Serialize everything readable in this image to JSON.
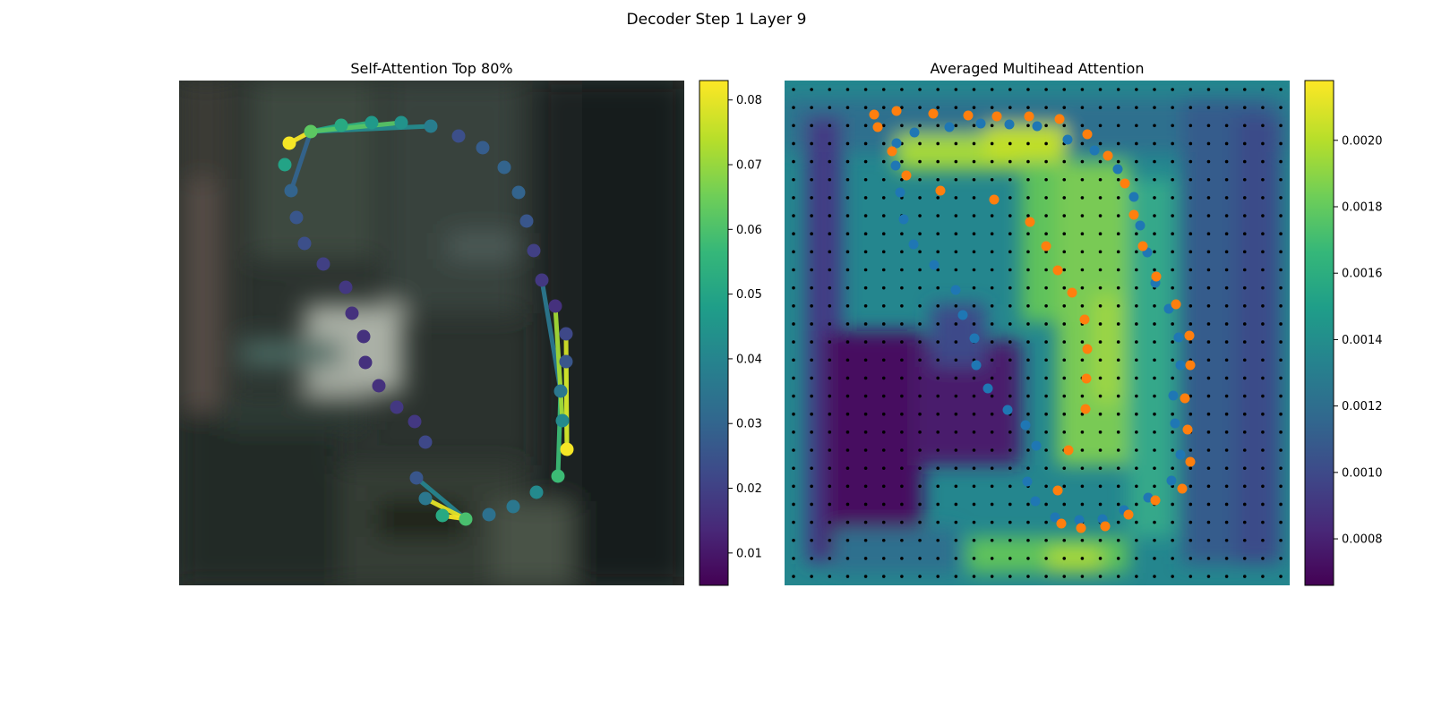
{
  "figure": {
    "suptitle": "Decoder Step 1 Layer 9"
  },
  "colors": {
    "viridis": [
      "#440154",
      "#482878",
      "#3e4989",
      "#31688e",
      "#26828e",
      "#1f9e89",
      "#35b779",
      "#6ece58",
      "#b5de2b",
      "#fde725"
    ],
    "series_blue": "#1f77b4",
    "series_orange": "#ff7f0e",
    "grid_dot": "#000000"
  },
  "chart_data": [
    {
      "panel": "left",
      "type": "scatter",
      "title": "Self-Attention Top 80%",
      "background": "blurred photo",
      "colorbar": {
        "ticks": [
          "0.01",
          "0.02",
          "0.03",
          "0.04",
          "0.05",
          "0.06",
          "0.07",
          "0.08"
        ],
        "range": [
          0.005,
          0.083
        ]
      },
      "points": [
        {
          "x": 323,
          "y": 160,
          "v": 0.082
        },
        {
          "x": 347,
          "y": 147,
          "v": 0.063
        },
        {
          "x": 381,
          "y": 140,
          "v": 0.052
        },
        {
          "x": 415,
          "y": 137,
          "v": 0.047
        },
        {
          "x": 448,
          "y": 137,
          "v": 0.045
        },
        {
          "x": 481,
          "y": 141,
          "v": 0.038
        },
        {
          "x": 512,
          "y": 152,
          "v": 0.024
        },
        {
          "x": 539,
          "y": 165,
          "v": 0.028
        },
        {
          "x": 563,
          "y": 187,
          "v": 0.03
        },
        {
          "x": 579,
          "y": 215,
          "v": 0.03
        },
        {
          "x": 588,
          "y": 247,
          "v": 0.026
        },
        {
          "x": 596,
          "y": 280,
          "v": 0.02
        },
        {
          "x": 605,
          "y": 313,
          "v": 0.018
        },
        {
          "x": 620,
          "y": 342,
          "v": 0.016
        },
        {
          "x": 632,
          "y": 373,
          "v": 0.022
        },
        {
          "x": 632,
          "y": 404,
          "v": 0.026
        },
        {
          "x": 626,
          "y": 437,
          "v": 0.036
        },
        {
          "x": 628,
          "y": 470,
          "v": 0.042
        },
        {
          "x": 633,
          "y": 502,
          "v": 0.082
        },
        {
          "x": 623,
          "y": 532,
          "v": 0.058
        },
        {
          "x": 599,
          "y": 550,
          "v": 0.042
        },
        {
          "x": 573,
          "y": 566,
          "v": 0.036
        },
        {
          "x": 546,
          "y": 575,
          "v": 0.034
        },
        {
          "x": 520,
          "y": 580,
          "v": 0.06
        },
        {
          "x": 494,
          "y": 576,
          "v": 0.052
        },
        {
          "x": 475,
          "y": 557,
          "v": 0.036
        },
        {
          "x": 465,
          "y": 534,
          "v": 0.026
        },
        {
          "x": 475,
          "y": 494,
          "v": 0.022
        },
        {
          "x": 463,
          "y": 471,
          "v": 0.018
        },
        {
          "x": 443,
          "y": 455,
          "v": 0.018
        },
        {
          "x": 423,
          "y": 431,
          "v": 0.016
        },
        {
          "x": 408,
          "y": 405,
          "v": 0.016
        },
        {
          "x": 406,
          "y": 376,
          "v": 0.016
        },
        {
          "x": 393,
          "y": 350,
          "v": 0.016
        },
        {
          "x": 386,
          "y": 321,
          "v": 0.018
        },
        {
          "x": 361,
          "y": 295,
          "v": 0.02
        },
        {
          "x": 340,
          "y": 272,
          "v": 0.024
        },
        {
          "x": 331,
          "y": 243,
          "v": 0.026
        },
        {
          "x": 325,
          "y": 213,
          "v": 0.03
        },
        {
          "x": 318,
          "y": 184,
          "v": 0.05
        }
      ],
      "links": [
        {
          "from": [
            323,
            160
          ],
          "to": [
            347,
            147
          ],
          "v": 0.082
        },
        {
          "from": [
            347,
            147
          ],
          "to": [
            448,
            137
          ],
          "v": 0.062
        },
        {
          "from": [
            347,
            147
          ],
          "to": [
            415,
            137
          ],
          "v": 0.055
        },
        {
          "from": [
            347,
            147
          ],
          "to": [
            381,
            140
          ],
          "v": 0.05
        },
        {
          "from": [
            347,
            147
          ],
          "to": [
            481,
            141
          ],
          "v": 0.042
        },
        {
          "from": [
            347,
            147
          ],
          "to": [
            325,
            213
          ],
          "v": 0.03
        },
        {
          "from": [
            632,
            373
          ],
          "to": [
            633,
            502
          ],
          "v": 0.078
        },
        {
          "from": [
            620,
            342
          ],
          "to": [
            628,
            470
          ],
          "v": 0.072
        },
        {
          "from": [
            632,
            404
          ],
          "to": [
            633,
            502
          ],
          "v": 0.066
        },
        {
          "from": [
            626,
            437
          ],
          "to": [
            623,
            532
          ],
          "v": 0.058
        },
        {
          "from": [
            605,
            313
          ],
          "to": [
            626,
            437
          ],
          "v": 0.036
        },
        {
          "from": [
            494,
            576
          ],
          "to": [
            520,
            580
          ],
          "v": 0.082
        },
        {
          "from": [
            475,
            557
          ],
          "to": [
            520,
            580
          ],
          "v": 0.08
        },
        {
          "from": [
            465,
            534
          ],
          "to": [
            520,
            580
          ],
          "v": 0.04
        }
      ]
    },
    {
      "panel": "right",
      "type": "heatmap",
      "title": "Averaged Multihead Attention",
      "colorbar": {
        "ticks": [
          "0.0008",
          "0.0010",
          "0.0012",
          "0.0014",
          "0.0016",
          "0.0018",
          "0.0020"
        ],
        "range": [
          0.00066,
          0.00218
        ]
      },
      "blue_points": [
        [
          1001,
          160
        ],
        [
          1000,
          185
        ],
        [
          1021,
          148
        ],
        [
          1060,
          142
        ],
        [
          1095,
          138
        ],
        [
          1127,
          139
        ],
        [
          1158,
          141
        ],
        [
          1192,
          156
        ],
        [
          1222,
          168
        ],
        [
          1248,
          189
        ],
        [
          1266,
          220
        ],
        [
          1273,
          252
        ],
        [
          1281,
          282
        ],
        [
          1290,
          316
        ],
        [
          1305,
          345
        ],
        [
          1316,
          377
        ],
        [
          1318,
          408
        ],
        [
          1310,
          442
        ],
        [
          1312,
          473
        ],
        [
          1318,
          508
        ],
        [
          1308,
          537
        ],
        [
          1282,
          556
        ],
        [
          1255,
          570
        ],
        [
          1231,
          580
        ],
        [
          1205,
          581
        ],
        [
          1178,
          578
        ],
        [
          1156,
          560
        ],
        [
          1147,
          538
        ],
        [
          1157,
          498
        ],
        [
          1145,
          475
        ],
        [
          1125,
          458
        ],
        [
          1103,
          434
        ],
        [
          1090,
          408
        ],
        [
          1088,
          378
        ],
        [
          1075,
          352
        ],
        [
          1067,
          324
        ],
        [
          1043,
          296
        ],
        [
          1020,
          273
        ],
        [
          1009,
          245
        ],
        [
          1005,
          215
        ]
      ],
      "orange_points": [
        [
          976,
          128
        ],
        [
          980,
          142
        ],
        [
          1001,
          124
        ],
        [
          1042,
          127
        ],
        [
          1081,
          129
        ],
        [
          1113,
          130
        ],
        [
          1149,
          130
        ],
        [
          1183,
          133
        ],
        [
          1214,
          150
        ],
        [
          1237,
          174
        ],
        [
          1256,
          205
        ],
        [
          1266,
          240
        ],
        [
          1276,
          275
        ],
        [
          1291,
          309
        ],
        [
          1313,
          340
        ],
        [
          1328,
          375
        ],
        [
          1329,
          408
        ],
        [
          1323,
          445
        ],
        [
          1326,
          480
        ],
        [
          1329,
          516
        ],
        [
          1320,
          546
        ],
        [
          1290,
          559
        ],
        [
          1260,
          575
        ],
        [
          1234,
          588
        ],
        [
          1207,
          590
        ],
        [
          1185,
          585
        ],
        [
          1181,
          548
        ],
        [
          1193,
          503
        ],
        [
          1212,
          457
        ],
        [
          1213,
          423
        ],
        [
          1214,
          390
        ],
        [
          1211,
          357
        ],
        [
          1197,
          327
        ],
        [
          1181,
          302
        ],
        [
          1168,
          275
        ],
        [
          1150,
          248
        ],
        [
          1110,
          223
        ],
        [
          1050,
          213
        ],
        [
          1012,
          196
        ],
        [
          996,
          169
        ]
      ]
    }
  ]
}
